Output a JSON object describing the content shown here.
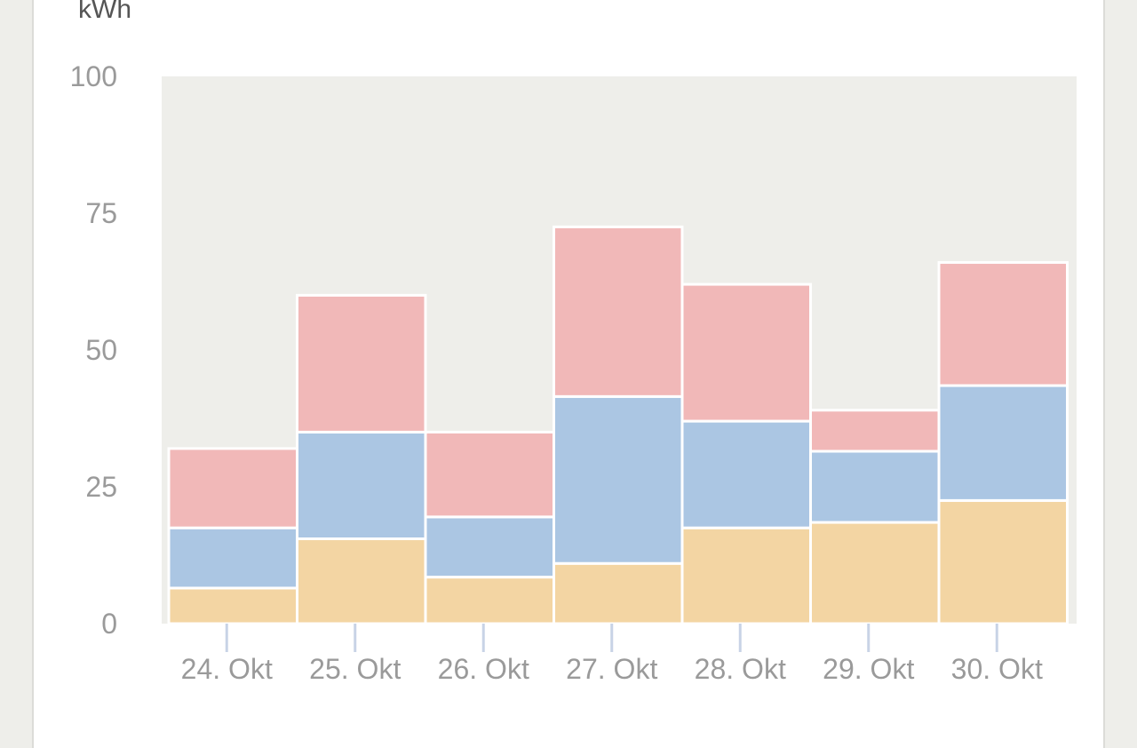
{
  "chart_data": {
    "type": "bar",
    "stacked": true,
    "ylabel": "kWh",
    "ylim": [
      0,
      100
    ],
    "yticks": [
      0,
      25,
      50,
      75,
      100
    ],
    "categories": [
      "24. Okt",
      "25. Okt",
      "26. Okt",
      "27. Okt",
      "28. Okt",
      "29. Okt",
      "30. Okt"
    ],
    "series": [
      {
        "color": "#f3d5a3",
        "values": [
          6.5,
          15.5,
          8.5,
          11,
          17.5,
          18.5,
          22.5
        ]
      },
      {
        "color": "#abc6e3",
        "values": [
          11,
          19.5,
          11,
          30.5,
          19.5,
          13,
          21
        ]
      },
      {
        "color": "#f1b8b8",
        "values": [
          14.5,
          25,
          15.5,
          31,
          25,
          7.5,
          22.5
        ]
      }
    ],
    "grid": false,
    "plot_background": "#eeeeea"
  }
}
